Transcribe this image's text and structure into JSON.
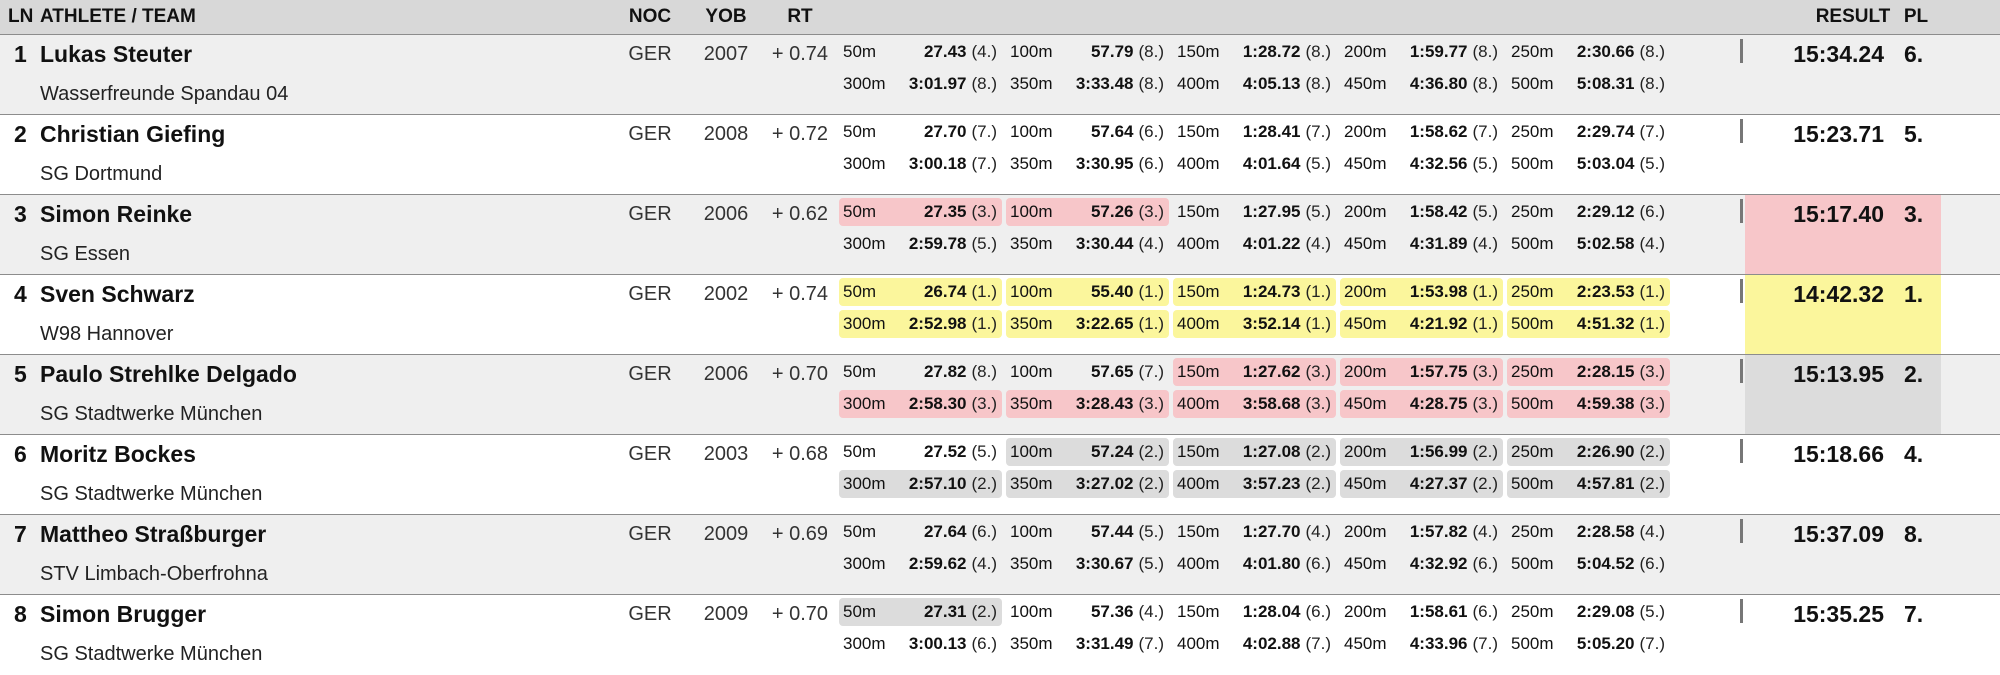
{
  "header": {
    "ln": "LN",
    "athlete": "ATHLETE / TEAM",
    "noc": "NOC",
    "yob": "YOB",
    "rt": "RT",
    "result": "RESULT",
    "pl": "PL"
  },
  "medal_colors": [
    "#fbf69c",
    "#dcdcdc",
    "#f7c6c9"
  ],
  "rows": [
    {
      "ln": 1,
      "name": "Lukas Steuter",
      "team": "Wasserfreunde Spandau 04",
      "noc": "GER",
      "yob": 2007,
      "rt": "+ 0.74",
      "splits": [
        {
          "dist": "50m",
          "time": "27.43",
          "rank": "(4.)"
        },
        {
          "dist": "100m",
          "time": "57.79",
          "rank": "(8.)"
        },
        {
          "dist": "150m",
          "time": "1:28.72",
          "rank": "(8.)"
        },
        {
          "dist": "200m",
          "time": "1:59.77",
          "rank": "(8.)"
        },
        {
          "dist": "250m",
          "time": "2:30.66",
          "rank": "(8.)"
        },
        {
          "dist": "300m",
          "time": "3:01.97",
          "rank": "(8.)"
        },
        {
          "dist": "350m",
          "time": "3:33.48",
          "rank": "(8.)"
        },
        {
          "dist": "400m",
          "time": "4:05.13",
          "rank": "(8.)"
        },
        {
          "dist": "450m",
          "time": "4:36.80",
          "rank": "(8.)"
        },
        {
          "dist": "500m",
          "time": "5:08.31",
          "rank": "(8.)"
        }
      ],
      "result": "15:34.24",
      "place": "6."
    },
    {
      "ln": 2,
      "name": "Christian Giefing",
      "team": "SG Dortmund",
      "noc": "GER",
      "yob": 2008,
      "rt": "+ 0.72",
      "splits": [
        {
          "dist": "50m",
          "time": "27.70",
          "rank": "(7.)"
        },
        {
          "dist": "100m",
          "time": "57.64",
          "rank": "(6.)"
        },
        {
          "dist": "150m",
          "time": "1:28.41",
          "rank": "(7.)"
        },
        {
          "dist": "200m",
          "time": "1:58.62",
          "rank": "(7.)"
        },
        {
          "dist": "250m",
          "time": "2:29.74",
          "rank": "(7.)"
        },
        {
          "dist": "300m",
          "time": "3:00.18",
          "rank": "(7.)"
        },
        {
          "dist": "350m",
          "time": "3:30.95",
          "rank": "(6.)"
        },
        {
          "dist": "400m",
          "time": "4:01.64",
          "rank": "(5.)"
        },
        {
          "dist": "450m",
          "time": "4:32.56",
          "rank": "(5.)"
        },
        {
          "dist": "500m",
          "time": "5:03.04",
          "rank": "(5.)"
        }
      ],
      "result": "15:23.71",
      "place": "5."
    },
    {
      "ln": 3,
      "name": "Simon Reinke",
      "team": "SG Essen",
      "noc": "GER",
      "yob": 2006,
      "rt": "+ 0.62",
      "splits": [
        {
          "dist": "50m",
          "time": "27.35",
          "rank": "(3.)"
        },
        {
          "dist": "100m",
          "time": "57.26",
          "rank": "(3.)"
        },
        {
          "dist": "150m",
          "time": "1:27.95",
          "rank": "(5.)"
        },
        {
          "dist": "200m",
          "time": "1:58.42",
          "rank": "(5.)"
        },
        {
          "dist": "250m",
          "time": "2:29.12",
          "rank": "(6.)"
        },
        {
          "dist": "300m",
          "time": "2:59.78",
          "rank": "(5.)"
        },
        {
          "dist": "350m",
          "time": "3:30.44",
          "rank": "(4.)"
        },
        {
          "dist": "400m",
          "time": "4:01.22",
          "rank": "(4.)"
        },
        {
          "dist": "450m",
          "time": "4:31.89",
          "rank": "(4.)"
        },
        {
          "dist": "500m",
          "time": "5:02.58",
          "rank": "(4.)"
        }
      ],
      "result": "15:17.40",
      "place": "3."
    },
    {
      "ln": 4,
      "name": "Sven Schwarz",
      "team": "W98 Hannover",
      "noc": "GER",
      "yob": 2002,
      "rt": "+ 0.74",
      "splits": [
        {
          "dist": "50m",
          "time": "26.74",
          "rank": "(1.)"
        },
        {
          "dist": "100m",
          "time": "55.40",
          "rank": "(1.)"
        },
        {
          "dist": "150m",
          "time": "1:24.73",
          "rank": "(1.)"
        },
        {
          "dist": "200m",
          "time": "1:53.98",
          "rank": "(1.)"
        },
        {
          "dist": "250m",
          "time": "2:23.53",
          "rank": "(1.)"
        },
        {
          "dist": "300m",
          "time": "2:52.98",
          "rank": "(1.)"
        },
        {
          "dist": "350m",
          "time": "3:22.65",
          "rank": "(1.)"
        },
        {
          "dist": "400m",
          "time": "3:52.14",
          "rank": "(1.)"
        },
        {
          "dist": "450m",
          "time": "4:21.92",
          "rank": "(1.)"
        },
        {
          "dist": "500m",
          "time": "4:51.32",
          "rank": "(1.)"
        }
      ],
      "result": "14:42.32",
      "place": "1."
    },
    {
      "ln": 5,
      "name": "Paulo Strehlke Delgado",
      "team": "SG Stadtwerke München",
      "noc": "GER",
      "yob": 2006,
      "rt": "+ 0.70",
      "splits": [
        {
          "dist": "50m",
          "time": "27.82",
          "rank": "(8.)"
        },
        {
          "dist": "100m",
          "time": "57.65",
          "rank": "(7.)"
        },
        {
          "dist": "150m",
          "time": "1:27.62",
          "rank": "(3.)"
        },
        {
          "dist": "200m",
          "time": "1:57.75",
          "rank": "(3.)"
        },
        {
          "dist": "250m",
          "time": "2:28.15",
          "rank": "(3.)"
        },
        {
          "dist": "300m",
          "time": "2:58.30",
          "rank": "(3.)"
        },
        {
          "dist": "350m",
          "time": "3:28.43",
          "rank": "(3.)"
        },
        {
          "dist": "400m",
          "time": "3:58.68",
          "rank": "(3.)"
        },
        {
          "dist": "450m",
          "time": "4:28.75",
          "rank": "(3.)"
        },
        {
          "dist": "500m",
          "time": "4:59.38",
          "rank": "(3.)"
        }
      ],
      "result": "15:13.95",
      "place": "2."
    },
    {
      "ln": 6,
      "name": "Moritz Bockes",
      "team": "SG Stadtwerke München",
      "noc": "GER",
      "yob": 2003,
      "rt": "+ 0.68",
      "splits": [
        {
          "dist": "50m",
          "time": "27.52",
          "rank": "(5.)"
        },
        {
          "dist": "100m",
          "time": "57.24",
          "rank": "(2.)"
        },
        {
          "dist": "150m",
          "time": "1:27.08",
          "rank": "(2.)"
        },
        {
          "dist": "200m",
          "time": "1:56.99",
          "rank": "(2.)"
        },
        {
          "dist": "250m",
          "time": "2:26.90",
          "rank": "(2.)"
        },
        {
          "dist": "300m",
          "time": "2:57.10",
          "rank": "(2.)"
        },
        {
          "dist": "350m",
          "time": "3:27.02",
          "rank": "(2.)"
        },
        {
          "dist": "400m",
          "time": "3:57.23",
          "rank": "(2.)"
        },
        {
          "dist": "450m",
          "time": "4:27.37",
          "rank": "(2.)"
        },
        {
          "dist": "500m",
          "time": "4:57.81",
          "rank": "(2.)"
        }
      ],
      "result": "15:18.66",
      "place": "4."
    },
    {
      "ln": 7,
      "name": "Mattheo Straßburger",
      "team": "STV Limbach-Oberfrohna",
      "noc": "GER",
      "yob": 2009,
      "rt": "+ 0.69",
      "splits": [
        {
          "dist": "50m",
          "time": "27.64",
          "rank": "(6.)"
        },
        {
          "dist": "100m",
          "time": "57.44",
          "rank": "(5.)"
        },
        {
          "dist": "150m",
          "time": "1:27.70",
          "rank": "(4.)"
        },
        {
          "dist": "200m",
          "time": "1:57.82",
          "rank": "(4.)"
        },
        {
          "dist": "250m",
          "time": "2:28.58",
          "rank": "(4.)"
        },
        {
          "dist": "300m",
          "time": "2:59.62",
          "rank": "(4.)"
        },
        {
          "dist": "350m",
          "time": "3:30.67",
          "rank": "(5.)"
        },
        {
          "dist": "400m",
          "time": "4:01.80",
          "rank": "(6.)"
        },
        {
          "dist": "450m",
          "time": "4:32.92",
          "rank": "(6.)"
        },
        {
          "dist": "500m",
          "time": "5:04.52",
          "rank": "(6.)"
        }
      ],
      "result": "15:37.09",
      "place": "8."
    },
    {
      "ln": 8,
      "name": "Simon Brugger",
      "team": "SG Stadtwerke München",
      "noc": "GER",
      "yob": 2009,
      "rt": "+ 0.70",
      "splits": [
        {
          "dist": "50m",
          "time": "27.31",
          "rank": "(2.)"
        },
        {
          "dist": "100m",
          "time": "57.36",
          "rank": "(4.)"
        },
        {
          "dist": "150m",
          "time": "1:28.04",
          "rank": "(6.)"
        },
        {
          "dist": "200m",
          "time": "1:58.61",
          "rank": "(6.)"
        },
        {
          "dist": "250m",
          "time": "2:29.08",
          "rank": "(5.)"
        },
        {
          "dist": "300m",
          "time": "3:00.13",
          "rank": "(6.)"
        },
        {
          "dist": "350m",
          "time": "3:31.49",
          "rank": "(7.)"
        },
        {
          "dist": "400m",
          "time": "4:02.88",
          "rank": "(7.)"
        },
        {
          "dist": "450m",
          "time": "4:33.96",
          "rank": "(7.)"
        },
        {
          "dist": "500m",
          "time": "5:05.20",
          "rank": "(7.)"
        }
      ],
      "result": "15:35.25",
      "place": "7."
    }
  ]
}
